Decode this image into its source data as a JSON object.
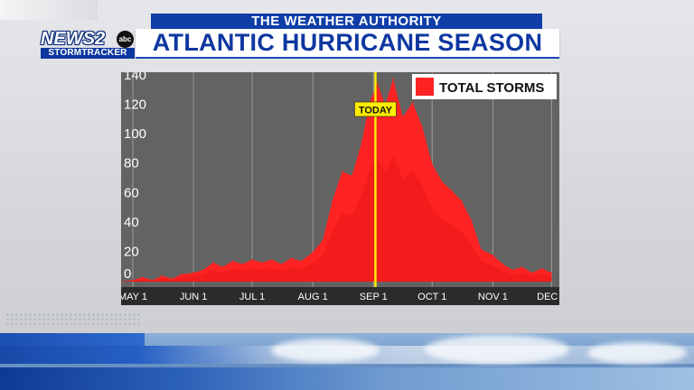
{
  "header": {
    "subtitle": "THE WEATHER AUTHORITY",
    "title": "ATLANTIC HURRICANE SEASON"
  },
  "logo": {
    "main": "NEWS2",
    "badge": "abc",
    "sub": "STORMTRACKER"
  },
  "colors": {
    "brand_blue": "#0e37a0",
    "storm_red": "#ff2222",
    "storm_red_dark": "#e81818",
    "today_line": "#ffee00",
    "plot_bg": "#636363"
  },
  "chart_data": {
    "type": "area",
    "title": "",
    "xlabel": "",
    "ylabel": "",
    "ylim": [
      0,
      140
    ],
    "yticks": [
      0,
      20,
      40,
      60,
      80,
      100,
      120,
      140
    ],
    "xlim": [
      "2023-04-25",
      "2023-12-05"
    ],
    "grid": "vertical",
    "legend": "top-right",
    "x_ticks": [
      {
        "date": "2023-05-01",
        "label": "MAY 1"
      },
      {
        "date": "2023-06-01",
        "label": "JUN 1"
      },
      {
        "date": "2023-07-01",
        "label": "JUL 1"
      },
      {
        "date": "2023-08-01",
        "label": "AUG 1"
      },
      {
        "date": "2023-09-01",
        "label": "SEP 1"
      },
      {
        "date": "2023-10-01",
        "label": "OCT 1"
      },
      {
        "date": "2023-11-01",
        "label": "NOV 1"
      },
      {
        "date": "2023-12-01",
        "label": "DEC 1"
      }
    ],
    "annotation": {
      "date": "2023-09-02",
      "label": "TODAY"
    },
    "series": [
      {
        "name": "TOTAL STORMS",
        "points": [
          [
            "2023-04-25",
            0
          ],
          [
            "2023-05-01",
            1
          ],
          [
            "2023-05-06",
            3
          ],
          [
            "2023-05-11",
            1
          ],
          [
            "2023-05-16",
            4
          ],
          [
            "2023-05-21",
            2
          ],
          [
            "2023-05-26",
            5
          ],
          [
            "2023-06-01",
            6
          ],
          [
            "2023-06-06",
            8
          ],
          [
            "2023-06-11",
            13
          ],
          [
            "2023-06-16",
            10
          ],
          [
            "2023-06-21",
            14
          ],
          [
            "2023-06-26",
            12
          ],
          [
            "2023-07-01",
            15
          ],
          [
            "2023-07-06",
            13
          ],
          [
            "2023-07-11",
            15
          ],
          [
            "2023-07-16",
            12
          ],
          [
            "2023-07-21",
            16
          ],
          [
            "2023-07-26",
            14
          ],
          [
            "2023-08-01",
            20
          ],
          [
            "2023-08-06",
            28
          ],
          [
            "2023-08-11",
            55
          ],
          [
            "2023-08-16",
            75
          ],
          [
            "2023-08-21",
            72
          ],
          [
            "2023-08-26",
            95
          ],
          [
            "2023-08-30",
            122
          ],
          [
            "2023-09-03",
            135
          ],
          [
            "2023-09-07",
            120
          ],
          [
            "2023-09-11",
            138
          ],
          [
            "2023-09-16",
            112
          ],
          [
            "2023-09-21",
            122
          ],
          [
            "2023-09-26",
            105
          ],
          [
            "2023-10-01",
            80
          ],
          [
            "2023-10-06",
            68
          ],
          [
            "2023-10-11",
            62
          ],
          [
            "2023-10-16",
            55
          ],
          [
            "2023-10-21",
            42
          ],
          [
            "2023-10-26",
            22
          ],
          [
            "2023-11-01",
            18
          ],
          [
            "2023-11-06",
            12
          ],
          [
            "2023-11-11",
            8
          ],
          [
            "2023-11-16",
            10
          ],
          [
            "2023-11-21",
            6
          ],
          [
            "2023-11-26",
            9
          ],
          [
            "2023-12-01",
            6
          ]
        ]
      }
    ]
  }
}
